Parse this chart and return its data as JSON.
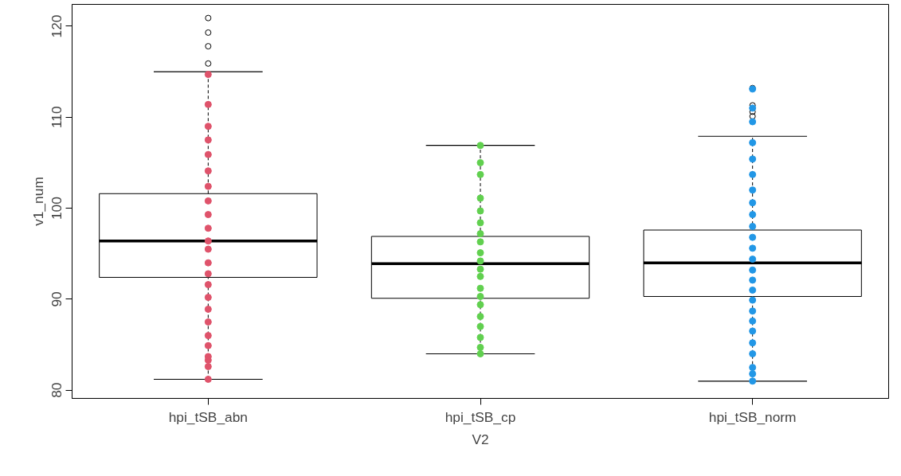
{
  "chart_data": {
    "type": "box",
    "xlabel": "V2",
    "ylabel": "v1_num",
    "categories": [
      "hpi_tSB_abn",
      "hpi_tSB_cp",
      "hpi_tSB_norm"
    ],
    "boxes": [
      {
        "low": 81.2,
        "q1": 92.4,
        "median": 96.4,
        "q3": 101.6,
        "high": 115.0,
        "outliers": [
          115.9,
          117.8,
          119.3,
          120.9
        ]
      },
      {
        "low": 84.0,
        "q1": 90.1,
        "median": 93.9,
        "q3": 96.9,
        "high": 106.9
      },
      {
        "low": 81.0,
        "q1": 90.3,
        "median": 94.0,
        "q3": 97.6,
        "high": 107.9,
        "outliers": [
          110.1,
          110.6,
          111.3,
          113.2
        ]
      }
    ],
    "series": [
      {
        "type": "scatter",
        "color": "#df536b",
        "x": [
          "hpi_tSB_abn",
          "hpi_tSB_abn",
          "hpi_tSB_abn",
          "hpi_tSB_abn",
          "hpi_tSB_abn",
          "hpi_tSB_abn",
          "hpi_tSB_abn",
          "hpi_tSB_abn",
          "hpi_tSB_abn",
          "hpi_tSB_abn",
          "hpi_tSB_abn",
          "hpi_tSB_abn",
          "hpi_tSB_abn",
          "hpi_tSB_abn",
          "hpi_tSB_abn",
          "hpi_tSB_abn",
          "hpi_tSB_abn",
          "hpi_tSB_abn",
          "hpi_tSB_abn",
          "hpi_tSB_abn",
          "hpi_tSB_abn",
          "hpi_tSB_abn",
          "hpi_tSB_abn",
          "hpi_tSB_abn"
        ],
        "values": [
          81.2,
          82.6,
          83.3,
          83.7,
          84.9,
          86.0,
          87.5,
          88.9,
          90.2,
          91.6,
          92.8,
          94.0,
          95.5,
          96.4,
          97.8,
          99.3,
          100.8,
          102.4,
          104.1,
          105.9,
          107.5,
          109.0,
          111.4,
          114.7
        ]
      },
      {
        "type": "scatter",
        "color": "#61d04f",
        "x": [
          "hpi_tSB_cp",
          "hpi_tSB_cp",
          "hpi_tSB_cp",
          "hpi_tSB_cp",
          "hpi_tSB_cp",
          "hpi_tSB_cp",
          "hpi_tSB_cp",
          "hpi_tSB_cp",
          "hpi_tSB_cp",
          "hpi_tSB_cp",
          "hpi_tSB_cp",
          "hpi_tSB_cp",
          "hpi_tSB_cp",
          "hpi_tSB_cp",
          "hpi_tSB_cp",
          "hpi_tSB_cp",
          "hpi_tSB_cp",
          "hpi_tSB_cp",
          "hpi_tSB_cp",
          "hpi_tSB_cp"
        ],
        "values": [
          84.0,
          84.7,
          85.8,
          87.0,
          88.1,
          89.4,
          90.3,
          91.2,
          92.5,
          93.3,
          94.2,
          95.1,
          96.3,
          97.2,
          98.4,
          99.7,
          101.1,
          103.7,
          105.0,
          106.9
        ]
      },
      {
        "type": "scatter",
        "color": "#2297e6",
        "x": [
          "hpi_tSB_norm",
          "hpi_tSB_norm",
          "hpi_tSB_norm",
          "hpi_tSB_norm",
          "hpi_tSB_norm",
          "hpi_tSB_norm",
          "hpi_tSB_norm",
          "hpi_tSB_norm",
          "hpi_tSB_norm",
          "hpi_tSB_norm",
          "hpi_tSB_norm",
          "hpi_tSB_norm",
          "hpi_tSB_norm",
          "hpi_tSB_norm",
          "hpi_tSB_norm",
          "hpi_tSB_norm",
          "hpi_tSB_norm",
          "hpi_tSB_norm",
          "hpi_tSB_norm",
          "hpi_tSB_norm",
          "hpi_tSB_norm",
          "hpi_tSB_norm",
          "hpi_tSB_norm",
          "hpi_tSB_norm",
          "hpi_tSB_norm"
        ],
        "values": [
          81.0,
          81.8,
          82.5,
          84.0,
          85.2,
          86.5,
          87.6,
          88.7,
          89.9,
          91.0,
          92.1,
          93.2,
          94.4,
          95.6,
          96.8,
          98.0,
          99.3,
          100.6,
          102.0,
          103.7,
          105.4,
          107.2,
          109.5,
          111.0,
          113.1
        ]
      }
    ],
    "ylim": [
      79.1,
      122.4
    ],
    "yticks": [
      80,
      90,
      100,
      110,
      120
    ],
    "grid": false,
    "marker": "circle"
  }
}
